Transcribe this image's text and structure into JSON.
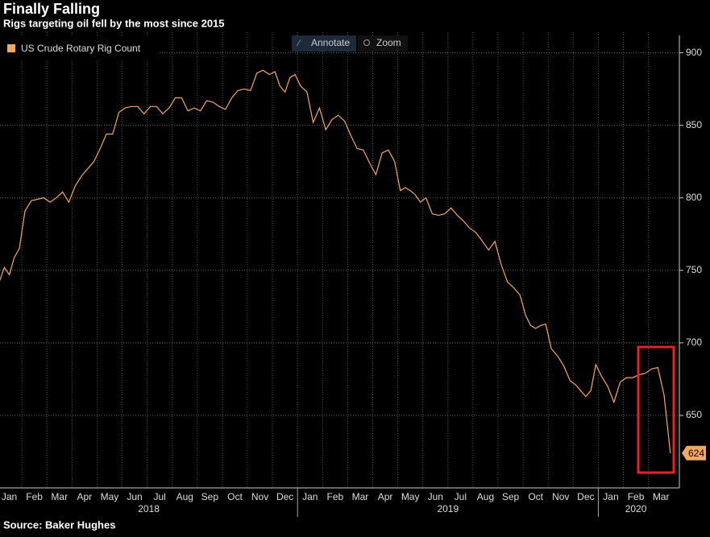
{
  "chart_data": {
    "type": "line",
    "title": "Finally Falling",
    "subtitle": "Rigs targeting oil fell by the most since 2015",
    "source": "Source: Baker Hughes",
    "toolbar": [
      "Annotate",
      "Zoom"
    ],
    "x": [
      "2018-01",
      "2018-01",
      "2018-01",
      "2018-01",
      "2018-01",
      "2018-02",
      "2018-02",
      "2018-02",
      "2018-02",
      "2018-03",
      "2018-03",
      "2018-03",
      "2018-03",
      "2018-04",
      "2018-04",
      "2018-04",
      "2018-04",
      "2018-05",
      "2018-05",
      "2018-05",
      "2018-05",
      "2018-06",
      "2018-06",
      "2018-06",
      "2018-06",
      "2018-07",
      "2018-07",
      "2018-07",
      "2018-07",
      "2018-08",
      "2018-08",
      "2018-08",
      "2018-08",
      "2018-09",
      "2018-09",
      "2018-09",
      "2018-09",
      "2018-10",
      "2018-10",
      "2018-10",
      "2018-10",
      "2018-11",
      "2018-11",
      "2018-11",
      "2018-11",
      "2018-12",
      "2018-12",
      "2018-12",
      "2018-12",
      "2018-12",
      "2019-01",
      "2019-01",
      "2019-01",
      "2019-01",
      "2019-02",
      "2019-02",
      "2019-02",
      "2019-02",
      "2019-03",
      "2019-03",
      "2019-03",
      "2019-03",
      "2019-04",
      "2019-04",
      "2019-04",
      "2019-04",
      "2019-05",
      "2019-05",
      "2019-05",
      "2019-05",
      "2019-05",
      "2019-06",
      "2019-06",
      "2019-06",
      "2019-06",
      "2019-07",
      "2019-07",
      "2019-07",
      "2019-07",
      "2019-08",
      "2019-08",
      "2019-08",
      "2019-08",
      "2019-09",
      "2019-09",
      "2019-09",
      "2019-09",
      "2019-10",
      "2019-10",
      "2019-10",
      "2019-10",
      "2019-10",
      "2019-11",
      "2019-11",
      "2019-11",
      "2019-11",
      "2019-12",
      "2019-12",
      "2019-12",
      "2019-12",
      "2019-12",
      "2020-01",
      "2020-01",
      "2020-01",
      "2020-01",
      "2020-02",
      "2020-02",
      "2020-02",
      "2020-02",
      "2020-03",
      "2020-03",
      "2020-03",
      "2020-03"
    ],
    "series": [
      {
        "name": "US Crude Rotary Rig Count",
        "color": "#f4a861",
        "values": [
          742,
          752,
          747,
          759,
          765,
          791,
          798,
          799,
          800,
          797,
          800,
          804,
          797,
          808,
          815,
          820,
          825,
          834,
          844,
          844,
          859,
          862,
          863,
          863,
          858,
          863,
          863,
          858,
          862,
          869,
          869,
          860,
          862,
          860,
          867,
          866,
          863,
          861,
          869,
          874,
          875,
          874,
          886,
          888,
          885,
          887,
          877,
          873,
          883,
          885,
          877,
          873,
          852,
          862,
          847,
          854,
          857,
          853,
          843,
          834,
          833,
          824,
          816,
          831,
          833,
          825,
          805,
          807,
          805,
          802,
          797,
          800,
          789,
          788,
          789,
          793,
          788,
          784,
          779,
          776,
          770,
          764,
          770,
          754,
          742,
          738,
          733,
          719,
          712,
          710,
          712,
          713,
          696,
          691,
          684,
          674,
          671,
          667,
          663,
          667,
          685,
          677,
          670,
          659,
          673,
          676,
          676,
          678,
          679,
          682,
          683,
          664,
          624
        ]
      }
    ],
    "xticks": [
      {
        "value": "2018-01",
        "label": "Jan"
      },
      {
        "value": "2018-02",
        "label": "Feb"
      },
      {
        "value": "2018-03",
        "label": "Mar"
      },
      {
        "value": "2018-04",
        "label": "Apr"
      },
      {
        "value": "2018-05",
        "label": "May"
      },
      {
        "value": "2018-06",
        "label": "Jun"
      },
      {
        "value": "2018-07",
        "label": "Jul"
      },
      {
        "value": "2018-08",
        "label": "Aug"
      },
      {
        "value": "2018-09",
        "label": "Sep"
      },
      {
        "value": "2018-10",
        "label": "Oct"
      },
      {
        "value": "2018-11",
        "label": "Nov"
      },
      {
        "value": "2018-12",
        "label": "Dec"
      },
      {
        "value": "2019-01",
        "label": "Jan"
      },
      {
        "value": "2019-02",
        "label": "Feb"
      },
      {
        "value": "2019-03",
        "label": "Mar"
      },
      {
        "value": "2019-04",
        "label": "Apr"
      },
      {
        "value": "2019-05",
        "label": "May"
      },
      {
        "value": "2019-06",
        "label": "Jun"
      },
      {
        "value": "2019-07",
        "label": "Jul"
      },
      {
        "value": "2019-08",
        "label": "Aug"
      },
      {
        "value": "2019-09",
        "label": "Sep"
      },
      {
        "value": "2019-10",
        "label": "Oct"
      },
      {
        "value": "2019-11",
        "label": "Nov"
      },
      {
        "value": "2019-12",
        "label": "Dec"
      },
      {
        "value": "2020-01",
        "label": "Jan"
      },
      {
        "value": "2020-02",
        "label": "Feb"
      },
      {
        "value": "2020-03",
        "label": "Mar"
      }
    ],
    "years": [
      "2018",
      "2019",
      "2020"
    ],
    "ylim": [
      600,
      912
    ],
    "yticks": [
      650,
      700,
      750,
      800,
      850,
      900
    ],
    "grid": true,
    "axis_side": "right",
    "legend": "upper left"
  }
}
